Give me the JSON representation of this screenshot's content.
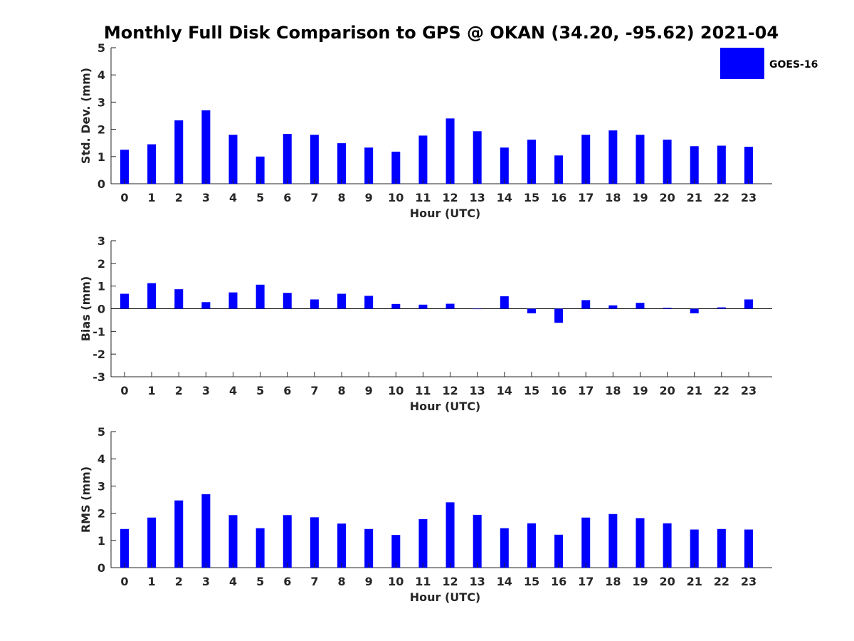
{
  "chart_data": {
    "title": "Monthly Full Disk Comparison to GPS @ OKAN (34.20, -95.62) 2021-04",
    "legend": {
      "label": "GOES-16",
      "color": "#0000ff",
      "placement": "top-right"
    },
    "bar_color": "#0000ff",
    "panels": [
      {
        "id": "std",
        "type": "bar",
        "ylabel": "Std. Dev. (mm)",
        "xlabel": "Hour (UTC)",
        "ylim": [
          0,
          5
        ],
        "yticks": [
          0,
          1,
          2,
          3,
          4,
          5
        ],
        "categories": [
          "0",
          "1",
          "2",
          "3",
          "4",
          "5",
          "6",
          "7",
          "8",
          "9",
          "10",
          "11",
          "12",
          "13",
          "14",
          "15",
          "16",
          "17",
          "18",
          "19",
          "20",
          "21",
          "22",
          "23"
        ],
        "values": [
          1.25,
          1.45,
          2.33,
          2.7,
          1.8,
          1.0,
          1.83,
          1.8,
          1.49,
          1.33,
          1.18,
          1.77,
          2.4,
          1.93,
          1.33,
          1.62,
          1.04,
          1.8,
          1.96,
          1.8,
          1.62,
          1.38,
          1.4,
          1.36
        ],
        "zero_line": false
      },
      {
        "id": "bias",
        "type": "bar",
        "ylabel": "Bias (mm)",
        "xlabel": "Hour (UTC)",
        "ylim": [
          -3,
          3
        ],
        "yticks": [
          -3,
          -2,
          -1,
          0,
          1,
          2,
          3
        ],
        "categories": [
          "0",
          "1",
          "2",
          "3",
          "4",
          "5",
          "6",
          "7",
          "8",
          "9",
          "10",
          "11",
          "12",
          "13",
          "14",
          "15",
          "16",
          "17",
          "18",
          "19",
          "20",
          "21",
          "22",
          "23"
        ],
        "values": [
          0.66,
          1.13,
          0.86,
          0.29,
          0.72,
          1.06,
          0.7,
          0.41,
          0.66,
          0.57,
          0.21,
          0.18,
          0.22,
          0.0,
          0.55,
          -0.2,
          -0.62,
          0.38,
          0.15,
          0.26,
          0.04,
          -0.2,
          0.06,
          0.41
        ],
        "zero_line": true
      },
      {
        "id": "rms",
        "type": "bar",
        "ylabel": "RMS (mm)",
        "xlabel": "Hour (UTC)",
        "ylim": [
          0,
          5
        ],
        "yticks": [
          0,
          1,
          2,
          3,
          4,
          5
        ],
        "categories": [
          "0",
          "1",
          "2",
          "3",
          "4",
          "5",
          "6",
          "7",
          "8",
          "9",
          "10",
          "11",
          "12",
          "13",
          "14",
          "15",
          "16",
          "17",
          "18",
          "19",
          "20",
          "21",
          "22",
          "23"
        ],
        "values": [
          1.42,
          1.84,
          2.47,
          2.7,
          1.93,
          1.45,
          1.93,
          1.85,
          1.62,
          1.42,
          1.2,
          1.78,
          2.4,
          1.94,
          1.45,
          1.63,
          1.21,
          1.84,
          1.97,
          1.82,
          1.63,
          1.4,
          1.42,
          1.4
        ],
        "zero_line": false
      }
    ]
  }
}
